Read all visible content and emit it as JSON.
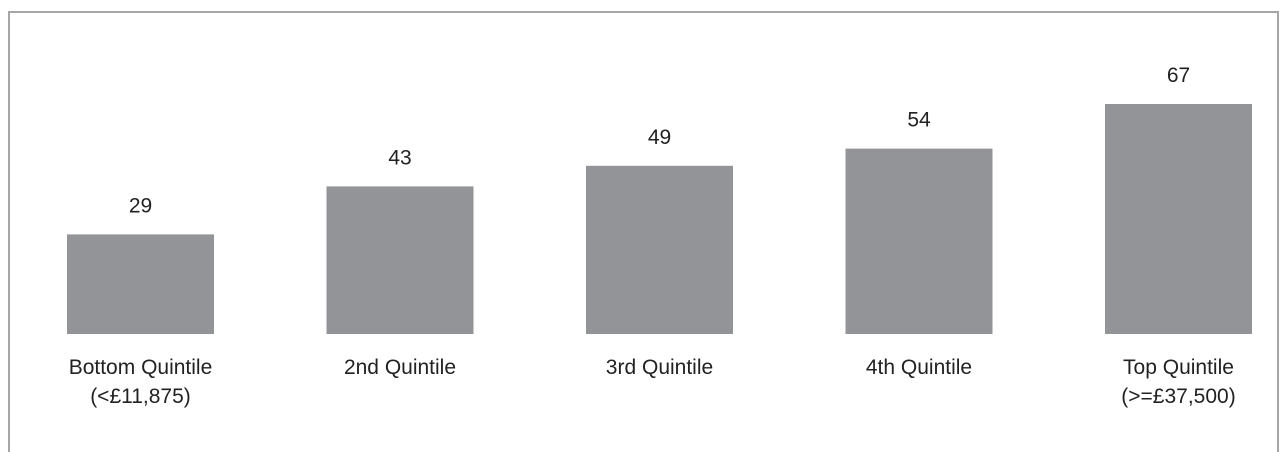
{
  "chart_data": {
    "type": "bar",
    "categories": [
      [
        "Bottom Quintile",
        "(<£11,875)"
      ],
      [
        "2nd Quintile"
      ],
      [
        "3rd Quintile"
      ],
      [
        "4th Quintile"
      ],
      [
        "Top Quintile",
        "(>=£37,500)"
      ]
    ],
    "values": [
      29,
      43,
      49,
      54,
      67
    ],
    "data_labels": [
      "29",
      "43",
      "49",
      "54",
      "67"
    ],
    "title": "",
    "xlabel": "",
    "ylabel": "",
    "ylim": [
      0,
      67
    ],
    "grid": false,
    "legend": "none",
    "bar_color": "#939498",
    "border_color": "#a6a6a6"
  }
}
